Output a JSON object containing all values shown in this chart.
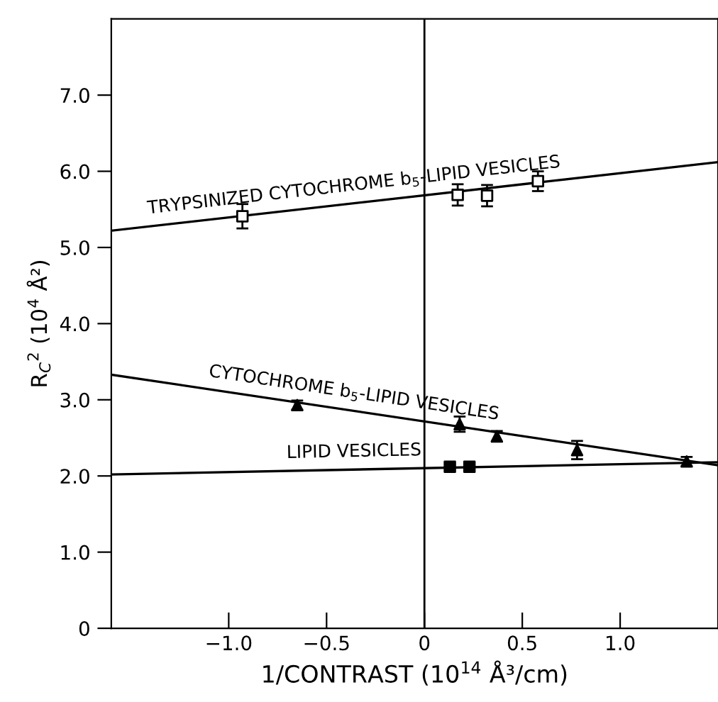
{
  "chart_data": {
    "type": "scatter",
    "xlabel": "1/CONTRAST (10$^{14}$ Å³/cm)",
    "ylabel": "R$_{C}$$^{2}$ (10$^{4}$ Å²)",
    "xlim": [
      -1.6,
      1.5
    ],
    "ylim": [
      0,
      8.0
    ],
    "xticks": [
      {
        "value": -1.0,
        "label": "−1.0"
      },
      {
        "value": -0.5,
        "label": "−0.5"
      },
      0,
      {
        "value": 0.5,
        "label": "0.5"
      },
      {
        "value": 1.0,
        "label": "1.0"
      }
    ],
    "yticks": [
      0,
      {
        "value": 1,
        "label": "1.0"
      },
      {
        "value": 2,
        "label": "2.0"
      },
      {
        "value": 3,
        "label": "3.0"
      },
      {
        "value": 4,
        "label": "4.0"
      },
      {
        "value": 5,
        "label": "5.0"
      },
      {
        "value": 6,
        "label": "6.0"
      },
      {
        "value": 7,
        "label": "7.0"
      }
    ],
    "grid": false,
    "legend": false,
    "ref_lines": [
      {
        "axis": "x",
        "value": 0,
        "color": "#000000"
      }
    ],
    "series": [
      {
        "color": "#000000",
        "marker": "square",
        "x": [
          -0.93,
          0.17,
          0.32,
          0.58
        ],
        "values": [
          5.41,
          5.69,
          5.68,
          5.87
        ],
        "errors": [
          0.16,
          0.14,
          0.14,
          0.13
        ]
      },
      {
        "type": "line",
        "name": "TRYPSINIZED CYTOCHROME b$_{5}$-LIPID VESICLES",
        "color": "#000000",
        "x": [
          -1.6,
          1.5
        ],
        "values": [
          5.22,
          6.12
        ]
      },
      {
        "color": "#000000",
        "marker": "triangle",
        "x": [
          -0.65,
          0.18,
          0.37,
          0.78,
          1.34
        ],
        "values": [
          2.93,
          2.68,
          2.52,
          2.34,
          2.19
        ],
        "errors": [
          0.06,
          0.1,
          0.07,
          0.12,
          0.06
        ]
      },
      {
        "type": "line",
        "name": "CYTOCHROME b$_{5}$-LIPID VESICLES",
        "color": "#000000",
        "x": [
          -1.6,
          1.5
        ],
        "values": [
          3.33,
          2.14
        ]
      },
      {
        "color": "#000000",
        "marker": "square",
        "x": [
          0.13,
          0.23
        ],
        "values": [
          2.12,
          2.12
        ]
      },
      {
        "type": "line",
        "name": "LIPID VESICLES",
        "color": "#000000",
        "x": [
          -1.6,
          1.5
        ],
        "values": [
          2.02,
          2.18
        ]
      }
    ]
  }
}
